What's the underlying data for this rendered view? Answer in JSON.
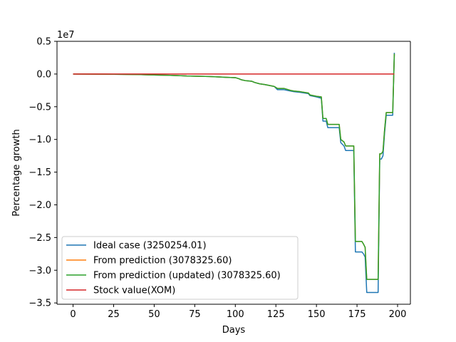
{
  "chart_data": {
    "type": "line",
    "title": "",
    "xlabel": "Days",
    "ylabel": "Percentage growth",
    "offset_label": "1e7",
    "y_scale_factor": 10000000,
    "xlim": [
      -9.9,
      207.9
    ],
    "ylim": [
      -35200000,
      5000000
    ],
    "xticks": [
      0,
      25,
      50,
      75,
      100,
      125,
      150,
      175,
      200
    ],
    "yticks": [
      5000000,
      0,
      -5000000,
      -10000000,
      -15000000,
      -20000000,
      -25000000,
      -30000000,
      -35000000
    ],
    "ytick_labels": [
      "0.5",
      "0.0",
      "−0.5",
      "−1.0",
      "−1.5",
      "−2.0",
      "−2.5",
      "−3.0",
      "−3.5"
    ],
    "grid": false,
    "legend_position": "lower-left",
    "series": [
      {
        "name": "Ideal case (3250254.01)",
        "color": "#1f77b4",
        "x": [
          0,
          20,
          40,
          50,
          60,
          66,
          70,
          84,
          90,
          94,
          100,
          102,
          104,
          106,
          110,
          112,
          115,
          118,
          120,
          124,
          126,
          130,
          134,
          136,
          140,
          145,
          146,
          150,
          153,
          154,
          156,
          157,
          160,
          164,
          165,
          167,
          168,
          173,
          174,
          177,
          178,
          179,
          180,
          181,
          184,
          188,
          189,
          190,
          191,
          192,
          193,
          197,
          198
        ],
        "y": [
          0,
          -20000,
          -80000,
          -150000,
          -200000,
          -250000,
          -300000,
          -380000,
          -450000,
          -500000,
          -550000,
          -700000,
          -900000,
          -1000000,
          -1100000,
          -1300000,
          -1500000,
          -1600000,
          -1700000,
          -1900000,
          -2400000,
          -2400000,
          -2600000,
          -2700000,
          -2800000,
          -3000000,
          -3300000,
          -3500000,
          -3700000,
          -7200000,
          -7200000,
          -8200000,
          -8200000,
          -8200000,
          -10500000,
          -11000000,
          -11700000,
          -11700000,
          -27200000,
          -27200000,
          -27200000,
          -27500000,
          -28000000,
          -33400000,
          -33400000,
          -33400000,
          -13000000,
          -13000000,
          -12500000,
          -9000000,
          -6300000,
          -6300000,
          3250254
        ]
      },
      {
        "name": "From prediction (3078325.60)",
        "color": "#ff7f0e",
        "x": [
          0,
          20,
          40,
          50,
          60,
          66,
          70,
          84,
          90,
          94,
          100,
          102,
          104,
          106,
          110,
          112,
          115,
          118,
          120,
          124,
          126,
          130,
          134,
          136,
          140,
          145,
          146,
          150,
          153,
          154,
          156,
          157,
          160,
          164,
          165,
          167,
          168,
          173,
          174,
          177,
          178,
          179,
          180,
          181,
          184,
          188,
          189,
          190,
          191,
          192,
          193,
          197,
          198
        ],
        "y": [
          0,
          -20000,
          -80000,
          -150000,
          -200000,
          -250000,
          -300000,
          -380000,
          -450000,
          -500000,
          -550000,
          -700000,
          -900000,
          -1000000,
          -1100000,
          -1300000,
          -1500000,
          -1600000,
          -1700000,
          -1900000,
          -2200000,
          -2200000,
          -2500000,
          -2600000,
          -2700000,
          -2900000,
          -3200000,
          -3400000,
          -3500000,
          -6800000,
          -6800000,
          -7700000,
          -7700000,
          -7700000,
          -10000000,
          -10400000,
          -11000000,
          -11000000,
          -25600000,
          -25600000,
          -25600000,
          -26000000,
          -26500000,
          -31400000,
          -31400000,
          -31400000,
          -12200000,
          -12200000,
          -11800000,
          -8500000,
          -5900000,
          -5900000,
          3078325.6
        ]
      },
      {
        "name": "From prediction (updated) (3078325.60)",
        "color": "#2ca02c",
        "x": [
          0,
          20,
          40,
          50,
          60,
          66,
          70,
          84,
          90,
          94,
          100,
          102,
          104,
          106,
          110,
          112,
          115,
          118,
          120,
          124,
          126,
          130,
          134,
          136,
          140,
          145,
          146,
          150,
          153,
          154,
          156,
          157,
          160,
          164,
          165,
          167,
          168,
          173,
          174,
          177,
          178,
          179,
          180,
          181,
          184,
          188,
          189,
          190,
          191,
          192,
          193,
          197,
          198
        ],
        "y": [
          0,
          -20000,
          -80000,
          -150000,
          -200000,
          -250000,
          -300000,
          -380000,
          -450000,
          -500000,
          -550000,
          -700000,
          -900000,
          -1000000,
          -1100000,
          -1300000,
          -1500000,
          -1600000,
          -1700000,
          -1900000,
          -2200000,
          -2200000,
          -2500000,
          -2600000,
          -2700000,
          -2900000,
          -3200000,
          -3400000,
          -3500000,
          -6800000,
          -6800000,
          -7700000,
          -7700000,
          -7700000,
          -10000000,
          -10400000,
          -11000000,
          -11000000,
          -25600000,
          -25600000,
          -25600000,
          -26000000,
          -26500000,
          -31400000,
          -31400000,
          -31400000,
          -12200000,
          -12200000,
          -11800000,
          -8500000,
          -5900000,
          -5900000,
          3078325.6
        ]
      },
      {
        "name": "Stock value(XOM)",
        "color": "#d62728",
        "x": [
          0,
          198
        ],
        "y": [
          0,
          0
        ]
      }
    ]
  }
}
